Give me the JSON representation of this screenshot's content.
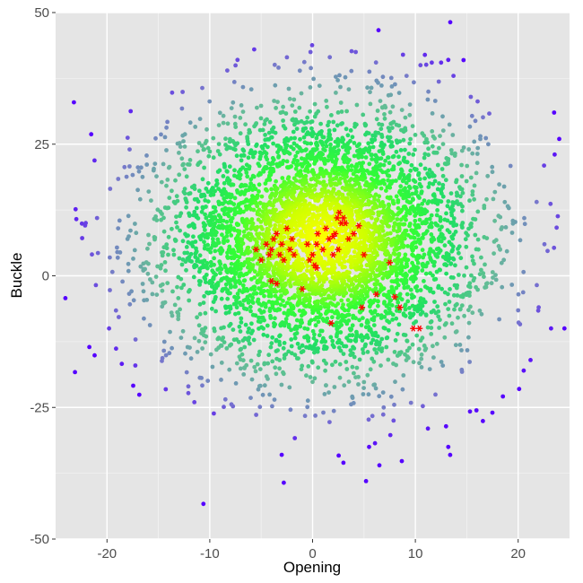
{
  "chart_data": {
    "type": "scatter",
    "title": "",
    "xlabel": "Opening",
    "ylabel": "Buckle",
    "xlim": [
      -25,
      25
    ],
    "ylim": [
      -50,
      50
    ],
    "x_ticks": [
      -20,
      -10,
      0,
      10,
      20
    ],
    "y_ticks": [
      -50,
      -25,
      0,
      25,
      50
    ],
    "x_tick_labels": [
      "-20",
      "-10",
      "0",
      "10",
      "20"
    ],
    "y_tick_labels": [
      "-50",
      "-25",
      "0",
      "25",
      "50"
    ],
    "grid": true,
    "legend": "none",
    "background_color": "#e5e5e5",
    "grid_major_color": "#ffffff",
    "grid_minor_color": "#f2f2f2",
    "color_scale": [
      "#ffff00",
      "#ccff00",
      "#33ff33",
      "#22dd66",
      "#66bb99",
      "#7777cc",
      "#5500ff"
    ],
    "background_cloud": {
      "description_points": "approximately 5000 points normally distributed",
      "center": [
        1,
        7
      ],
      "sd": [
        7.5,
        12
      ],
      "n": 5000,
      "color_by": "distance from center"
    },
    "highlight_series": {
      "marker": "asterisk",
      "color": "#ff0000",
      "points": [
        [
          -5.5,
          5
        ],
        [
          -5,
          3
        ],
        [
          -4.5,
          6
        ],
        [
          -4.2,
          4
        ],
        [
          -4,
          5
        ],
        [
          -3.8,
          7
        ],
        [
          -3.5,
          8
        ],
        [
          -3.2,
          4
        ],
        [
          -3,
          6
        ],
        [
          -2.8,
          3
        ],
        [
          -2.5,
          9
        ],
        [
          -2.2,
          5
        ],
        [
          -2,
          7
        ],
        [
          -1.8,
          4
        ],
        [
          -4,
          -1
        ],
        [
          -3.5,
          -1.5
        ],
        [
          -1,
          -2.5
        ],
        [
          -0.5,
          6
        ],
        [
          -0.3,
          3
        ],
        [
          0,
          4
        ],
        [
          0.2,
          2
        ],
        [
          0.4,
          6
        ],
        [
          0.5,
          8
        ],
        [
          1,
          5
        ],
        [
          1.3,
          9
        ],
        [
          1.6,
          7
        ],
        [
          2,
          4
        ],
        [
          2.2,
          8
        ],
        [
          2.4,
          11
        ],
        [
          2.6,
          12
        ],
        [
          2.8,
          10
        ],
        [
          3,
          11
        ],
        [
          3.2,
          10
        ],
        [
          3.5,
          7
        ],
        [
          4,
          8
        ],
        [
          4.5,
          9.5
        ],
        [
          5,
          4
        ],
        [
          7.5,
          2.5
        ],
        [
          6.2,
          -3.5
        ],
        [
          4.8,
          -6
        ],
        [
          8,
          -4
        ],
        [
          8.5,
          -6
        ],
        [
          9.8,
          -10
        ],
        [
          10.4,
          -10
        ],
        [
          1.8,
          -9
        ],
        [
          0.4,
          1.5
        ],
        [
          2,
          7.5
        ],
        [
          2.5,
          5
        ]
      ]
    },
    "outlier_points": [
      [
        -19.8,
        -10
      ],
      [
        -17.8,
        24
      ],
      [
        -8.3,
        39
      ],
      [
        -7.3,
        41
      ],
      [
        -2.5,
        41.5
      ],
      [
        -0.2,
        42.5
      ],
      [
        4.2,
        42.5
      ],
      [
        8.8,
        42
      ],
      [
        10.5,
        40
      ],
      [
        11.6,
        40.5
      ],
      [
        12.5,
        40.5
      ],
      [
        13.2,
        41
      ],
      [
        23.5,
        31
      ],
      [
        24,
        26
      ],
      [
        23.2,
        -10
      ],
      [
        20.1,
        -21.5
      ],
      [
        21.2,
        -16
      ],
      [
        3,
        -35.5
      ],
      [
        5.5,
        -32.5
      ],
      [
        6.5,
        -36
      ],
      [
        5.2,
        -39
      ],
      [
        13.2,
        -32.5
      ],
      [
        -3,
        -34
      ],
      [
        -19,
        4.5
      ],
      [
        -18,
        7
      ],
      [
        -11.5,
        -24
      ],
      [
        17.5,
        -26
      ],
      [
        24.5,
        -10
      ],
      [
        22,
        -6
      ]
    ]
  }
}
